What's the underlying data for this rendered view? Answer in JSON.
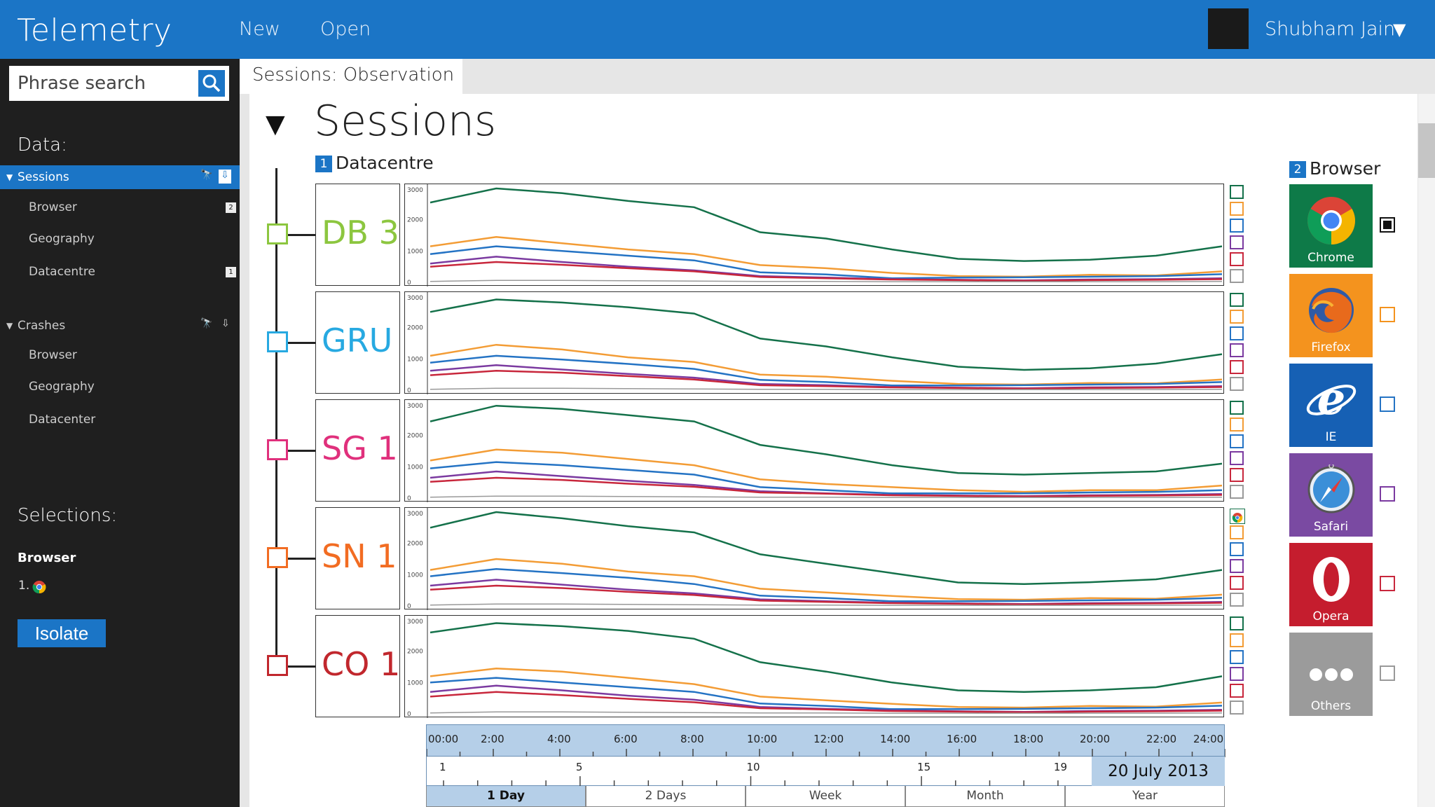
{
  "app": {
    "title": "Telemetry",
    "menu": {
      "new": "New",
      "open": "Open"
    },
    "user": "Shubham Jain"
  },
  "search": {
    "placeholder": "Phrase search"
  },
  "sidebar": {
    "data_heading": "Data:",
    "groups": [
      {
        "label": "Sessions",
        "items": [
          {
            "label": "Browser",
            "badge": "2"
          },
          {
            "label": "Geography",
            "badge": ""
          },
          {
            "label": "Datacentre",
            "badge": "1"
          }
        ]
      },
      {
        "label": "Crashes",
        "items": [
          {
            "label": "Browser"
          },
          {
            "label": "Geography"
          },
          {
            "label": "Datacenter"
          }
        ]
      }
    ],
    "selections_heading": "Selections:",
    "selection_group": "Browser",
    "selection_item": "1.",
    "isolate": "Isolate"
  },
  "tab": {
    "label": "Sessions: Observation"
  },
  "panel": {
    "title": "Sessions",
    "section1": {
      "num": "1",
      "label": "Datacentre"
    },
    "section2": {
      "num": "2",
      "label": "Browser"
    }
  },
  "colors": {
    "accent": "#1b75c6",
    "chrome": "#14714a",
    "firefox": "#f39c35",
    "ie": "#2473c4",
    "safari": "#7b3aa0",
    "opera": "#c8273c",
    "others": "#999999"
  },
  "browsers": [
    {
      "name": "Chrome",
      "bg": "#0e7a48",
      "check": "#111111",
      "checked": true
    },
    {
      "name": "Firefox",
      "bg": "#f4931e",
      "check": "#f4931e",
      "checked": false
    },
    {
      "name": "IE",
      "bg": "#1660b4",
      "check": "#2473c4",
      "checked": false
    },
    {
      "name": "Safari",
      "bg": "#7a4aa2",
      "check": "#7b3aa0",
      "checked": false
    },
    {
      "name": "Opera",
      "bg": "#c51d2e",
      "check": "#c8273c",
      "checked": false
    },
    {
      "name": "Others",
      "bg": "#9b9b9b",
      "check": "#999999",
      "checked": false
    }
  ],
  "chart_data": {
    "type": "line",
    "x": [
      "00:00",
      "2:00",
      "4:00",
      "6:00",
      "8:00",
      "10:00",
      "12:00",
      "14:00",
      "16:00",
      "18:00",
      "20:00",
      "22:00",
      "24:00"
    ],
    "y_ticks": [
      "3000",
      "2000",
      "1000",
      "0"
    ],
    "ylim": [
      0,
      3000
    ],
    "series_colors": [
      "#14714a",
      "#f39c35",
      "#2473c4",
      "#7b3aa0",
      "#c8273c",
      "#999999"
    ],
    "panels": [
      {
        "label": "DB 3",
        "color": "#8cc63f",
        "series": [
          {
            "values": [
              2550,
              3000,
              2850,
              2600,
              2400,
              1600,
              1400,
              1050,
              750,
              680,
              720,
              850,
              1150
            ]
          },
          {
            "values": [
              1150,
              1450,
              1250,
              1050,
              900,
              550,
              450,
              300,
              200,
              180,
              240,
              220,
              350
            ]
          },
          {
            "values": [
              900,
              1150,
              1000,
              850,
              700,
              320,
              250,
              130,
              150,
              160,
              180,
              200,
              260
            ]
          },
          {
            "values": [
              600,
              820,
              650,
              500,
              380,
              200,
              150,
              100,
              80,
              60,
              90,
              100,
              130
            ]
          },
          {
            "values": [
              500,
              650,
              560,
              450,
              350,
              170,
              130,
              90,
              70,
              50,
              70,
              80,
              100
            ]
          },
          {
            "values": [
              30,
              60,
              60,
              50,
              40,
              30,
              30,
              20,
              20,
              20,
              20,
              20,
              30
            ]
          }
        ]
      },
      {
        "label": "GRU",
        "color": "#27a9e1",
        "series": [
          {
            "values": [
              2500,
              2900,
              2800,
              2650,
              2450,
              1650,
              1400,
              1050,
              750,
              650,
              700,
              850,
              1150
            ]
          },
          {
            "values": [
              1100,
              1450,
              1300,
              1050,
              900,
              500,
              430,
              300,
              200,
              180,
              230,
              220,
              340
            ]
          },
          {
            "values": [
              880,
              1100,
              980,
              840,
              680,
              330,
              260,
              150,
              150,
              160,
              180,
              200,
              260
            ]
          },
          {
            "values": [
              620,
              800,
              660,
              520,
              400,
              200,
              160,
              100,
              80,
              60,
              90,
              100,
              130
            ]
          },
          {
            "values": [
              480,
              620,
              560,
              450,
              340,
              160,
              130,
              90,
              70,
              50,
              70,
              80,
              100
            ]
          },
          {
            "values": [
              30,
              60,
              60,
              50,
              40,
              30,
              30,
              20,
              20,
              20,
              20,
              20,
              30
            ]
          }
        ]
      },
      {
        "label": "SG 1",
        "color": "#e0307c",
        "series": [
          {
            "values": [
              2450,
              2950,
              2850,
              2650,
              2450,
              1700,
              1400,
              1050,
              800,
              750,
              800,
              850,
              1100
            ]
          },
          {
            "values": [
              1200,
              1550,
              1450,
              1250,
              1050,
              600,
              450,
              350,
              250,
              200,
              250,
              250,
              400
            ]
          },
          {
            "values": [
              950,
              1150,
              1050,
              900,
              750,
              350,
              250,
              150,
              150,
              150,
              180,
              200,
              250
            ]
          },
          {
            "values": [
              650,
              850,
              700,
              550,
              420,
              220,
              150,
              100,
              80,
              60,
              90,
              100,
              130
            ]
          },
          {
            "values": [
              520,
              650,
              580,
              460,
              360,
              180,
              140,
              90,
              70,
              50,
              70,
              80,
              100
            ]
          },
          {
            "values": [
              30,
              60,
              60,
              50,
              40,
              30,
              30,
              20,
              20,
              20,
              20,
              20,
              30
            ]
          }
        ]
      },
      {
        "label": "SN 1",
        "color": "#f26c22",
        "series": [
          {
            "values": [
              2500,
              3000,
              2800,
              2550,
              2350,
              1650,
              1350,
              1050,
              750,
              700,
              760,
              850,
              1150
            ]
          },
          {
            "values": [
              1150,
              1500,
              1350,
              1100,
              950,
              550,
              430,
              320,
              220,
              200,
              250,
              230,
              360
            ]
          },
          {
            "values": [
              950,
              1180,
              1050,
              900,
              700,
              330,
              250,
              150,
              150,
              160,
              180,
              200,
              260
            ]
          },
          {
            "values": [
              650,
              840,
              680,
              520,
              400,
              210,
              150,
              100,
              80,
              60,
              90,
              100,
              130
            ]
          },
          {
            "values": [
              520,
              650,
              570,
              450,
              350,
              170,
              130,
              90,
              70,
              50,
              70,
              80,
              100
            ]
          },
          {
            "values": [
              30,
              60,
              60,
              50,
              40,
              30,
              30,
              20,
              20,
              20,
              20,
              20,
              30
            ]
          }
        ]
      },
      {
        "label": "CO 1",
        "color": "#c1272d",
        "series": [
          {
            "values": [
              2600,
              2900,
              2800,
              2650,
              2400,
              1650,
              1350,
              1000,
              750,
              700,
              750,
              850,
              1200
            ]
          },
          {
            "values": [
              1200,
              1450,
              1350,
              1150,
              950,
              550,
              430,
              320,
              220,
              200,
              250,
              230,
              360
            ]
          },
          {
            "values": [
              1000,
              1150,
              1000,
              850,
              700,
              330,
              250,
              150,
              150,
              160,
              180,
              200,
              260
            ]
          },
          {
            "values": [
              700,
              900,
              750,
              580,
              450,
              220,
              160,
              110,
              80,
              60,
              90,
              100,
              130
            ]
          },
          {
            "values": [
              550,
              700,
              600,
              480,
              370,
              180,
              140,
              90,
              70,
              50,
              70,
              80,
              100
            ]
          },
          {
            "values": [
              30,
              60,
              60,
              50,
              40,
              30,
              30,
              20,
              20,
              20,
              20,
              20,
              30
            ]
          }
        ]
      }
    ]
  },
  "timeline": {
    "hours": [
      "00:00",
      "2:00",
      "4:00",
      "6:00",
      "8:00",
      "10:00",
      "12:00",
      "14:00",
      "16:00",
      "18:00",
      "20:00",
      "22:00",
      "24:00"
    ],
    "days": [
      "1",
      "5",
      "10",
      "15",
      "19"
    ],
    "date": "20 July 2013",
    "ranges": [
      {
        "label": "1 Day",
        "active": true
      },
      {
        "label": "2 Days",
        "active": false
      },
      {
        "label": "Week",
        "active": false
      },
      {
        "label": "Month",
        "active": false
      },
      {
        "label": "Year",
        "active": false
      }
    ]
  }
}
